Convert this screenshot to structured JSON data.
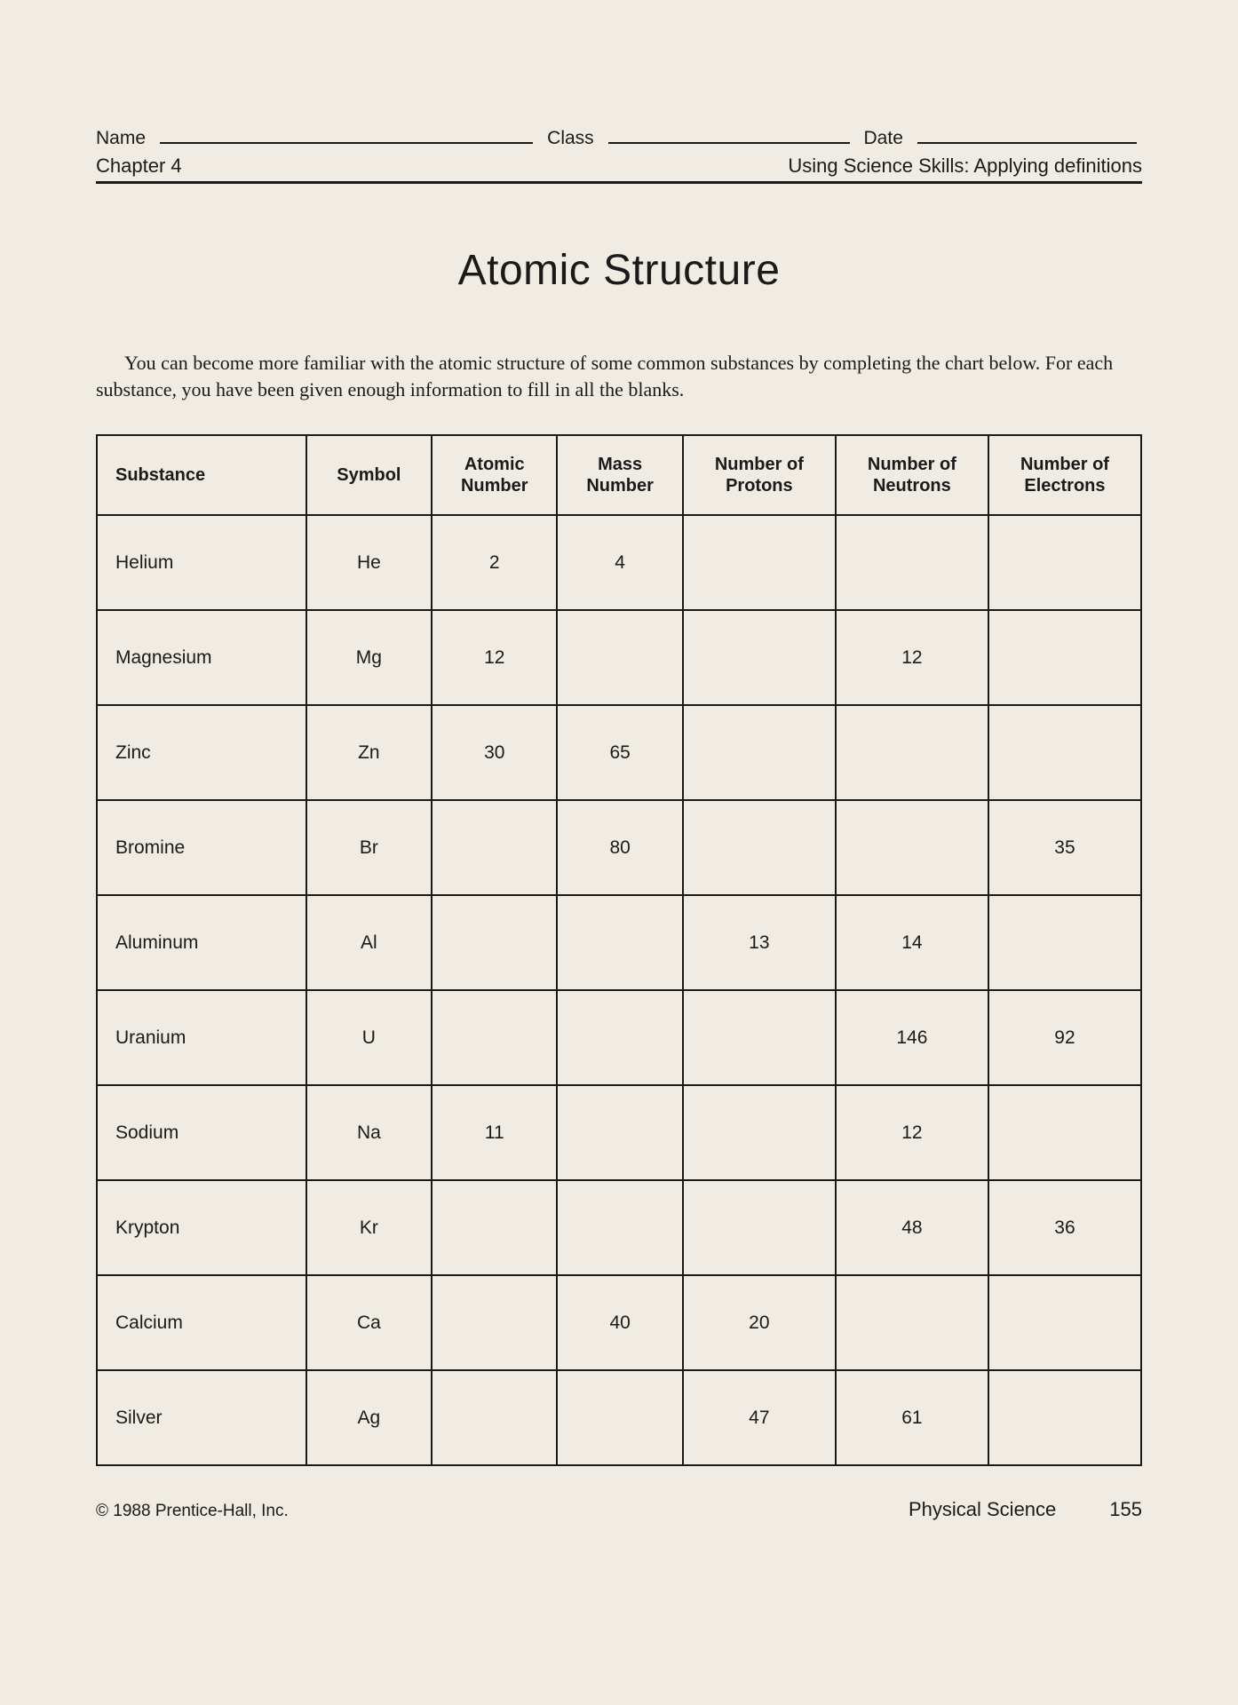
{
  "header": {
    "name_label": "Name",
    "class_label": "Class",
    "date_label": "Date",
    "chapter": "Chapter 4",
    "skill": "Using Science Skills: Applying definitions"
  },
  "title": "Atomic Structure",
  "intro": "You can become more familiar with the atomic structure of some common substances by completing the chart below. For each substance, you have been given enough information to fill in all the blanks.",
  "table": {
    "columns": [
      "Substance",
      "Symbol",
      "Atomic Number",
      "Mass Number",
      "Number of Protons",
      "Number of Neutrons",
      "Number of Electrons"
    ],
    "rows": [
      [
        "Helium",
        "He",
        "2",
        "4",
        "",
        "",
        ""
      ],
      [
        "Magnesium",
        "Mg",
        "12",
        "",
        "",
        "12",
        ""
      ],
      [
        "Zinc",
        "Zn",
        "30",
        "65",
        "",
        "",
        ""
      ],
      [
        "Bromine",
        "Br",
        "",
        "80",
        "",
        "",
        "35"
      ],
      [
        "Aluminum",
        "Al",
        "",
        "",
        "13",
        "14",
        ""
      ],
      [
        "Uranium",
        "U",
        "",
        "",
        "",
        "146",
        "92"
      ],
      [
        "Sodium",
        "Na",
        "11",
        "",
        "",
        "12",
        ""
      ],
      [
        "Krypton",
        "Kr",
        "",
        "",
        "",
        "48",
        "36"
      ],
      [
        "Calcium",
        "Ca",
        "",
        "40",
        "20",
        "",
        ""
      ],
      [
        "Silver",
        "Ag",
        "",
        "",
        "47",
        "61",
        ""
      ]
    ]
  },
  "footer": {
    "copyright": "© 1988 Prentice-Hall, Inc.",
    "subject": "Physical Science",
    "page": "155"
  }
}
